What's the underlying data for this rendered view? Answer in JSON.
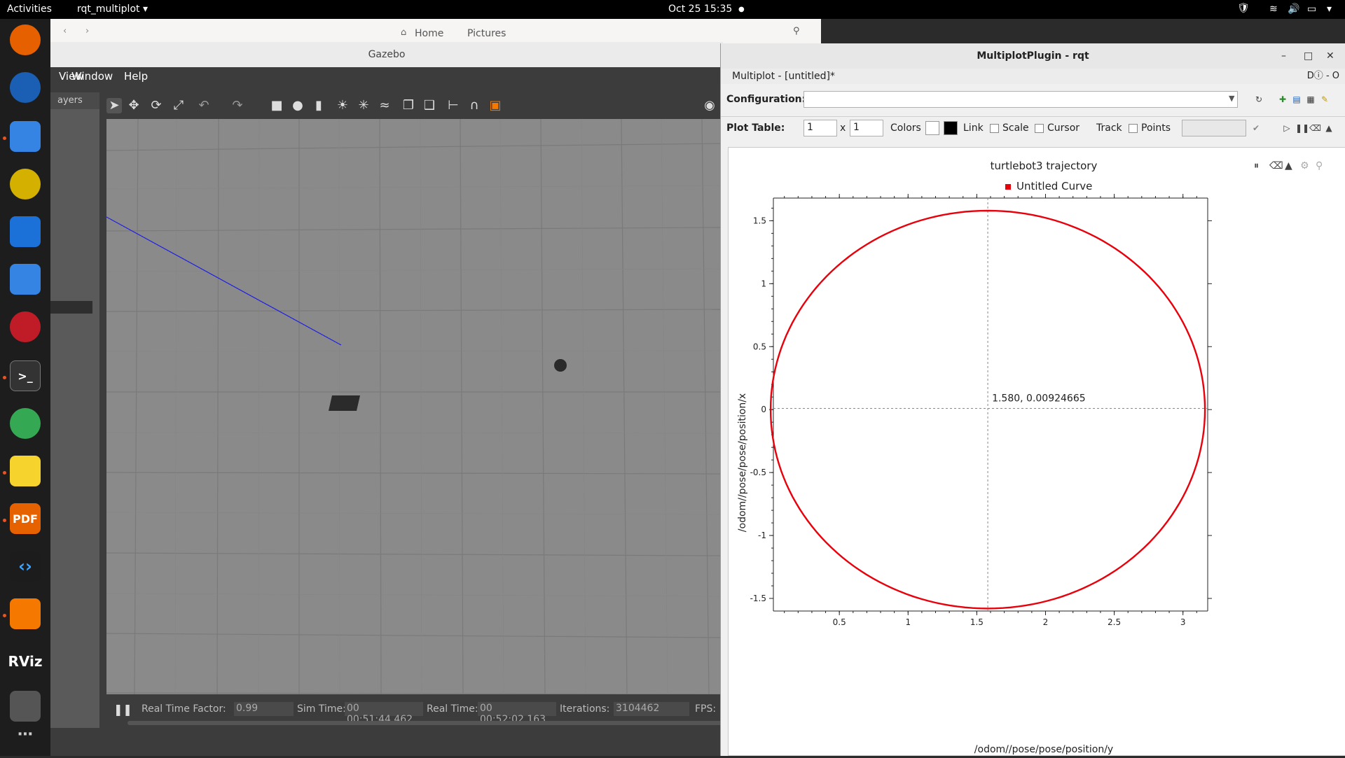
{
  "topbar": {
    "activities": "Activities",
    "app_name": "rqt_multiplot",
    "datetime": "Oct 25  15:35"
  },
  "nautilus": {
    "home": "Home",
    "pictures": "Pictures"
  },
  "gazebo": {
    "title": "Gazebo",
    "menu": [
      "View",
      "Window",
      "Help"
    ],
    "left_tab": "ayers",
    "status": {
      "rtf_label": "Real Time Factor:",
      "rtf_value": "0.99",
      "sim_label": "Sim Time:",
      "sim_value": "00 00:51:44.462",
      "real_label": "Real Time:",
      "real_value": "00 00:52:02.163",
      "iter_label": "Iterations:",
      "iter_value": "3104462",
      "fps_label": "FPS:"
    }
  },
  "rqt": {
    "title": "MultiplotPlugin - rqt",
    "subtitle": "Multiplot - [untitled]*",
    "config_label": "Configuration:",
    "config_value": "",
    "plot_table_label": "Plot Table:",
    "rows": "1",
    "times": "x",
    "cols": "1",
    "colors_label": "Colors",
    "link_label": "Link",
    "scale_label": "Scale",
    "cursor_label": "Cursor",
    "track_label": "Track",
    "points_label": "Points",
    "curve_color": "#e8000b"
  },
  "chart_data": {
    "type": "line",
    "title": "turtlebot3 trajectory",
    "legend": [
      "Untitled Curve"
    ],
    "xlabel": "/odom//pose/pose/position/y",
    "ylabel": "/odom//pose/pose/position/x",
    "xlim": [
      0.02,
      3.18
    ],
    "ylim": [
      -1.6,
      1.68
    ],
    "xticks": [
      "0.5",
      "1",
      "1.5",
      "2",
      "2.5",
      "3"
    ],
    "yticks": [
      "1.5",
      "1",
      "0.5",
      "0",
      "-0.5",
      "-1",
      "-1.5"
    ],
    "cursor_label": "1.580, 0.00924665",
    "cursor": {
      "x": 1.58,
      "y": 0.00924665
    },
    "series": [
      {
        "name": "Untitled Curve",
        "center": {
          "x": 1.58,
          "y": 0.0
        },
        "radius_x": 1.58,
        "radius_y": 1.58
      }
    ]
  }
}
